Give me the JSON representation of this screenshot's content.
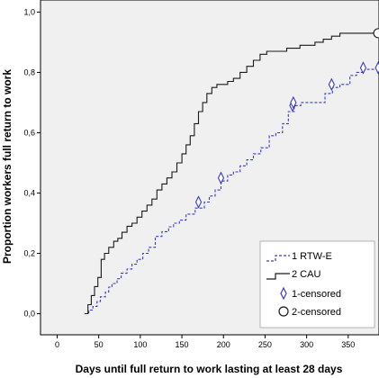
{
  "chart_data": {
    "type": "line",
    "xlabel": "Days until full return to work lasting at least 28 days",
    "ylabel": "Proportion workers full return to work",
    "xlim": [
      -20,
      387
    ],
    "ylim": [
      -0.07,
      1.04
    ],
    "xticks": [
      0,
      50,
      100,
      150,
      200,
      250,
      300,
      350
    ],
    "xtick_labels": [
      "0",
      "50",
      "100",
      "150",
      "200",
      "250",
      "300",
      "350"
    ],
    "yticks": [
      0.0,
      0.2,
      0.4,
      0.6,
      0.8,
      1.0
    ],
    "ytick_labels": [
      "0,0",
      "0,2",
      "0,4",
      "0,6",
      "0,8",
      "1,0"
    ],
    "grid": false,
    "legend_position": "bottom-right",
    "plot_background": "#f0f0f0",
    "series": [
      {
        "name": "1 RTW-E",
        "style": "dashed-step",
        "color": "#3a3ac8",
        "x": [
          33,
          38,
          43,
          48,
          52,
          58,
          62,
          66,
          72,
          77,
          84,
          90,
          96,
          103,
          110,
          118,
          126,
          134,
          140,
          147,
          155,
          166,
          177,
          183,
          190,
          197,
          205,
          212,
          220,
          228,
          236,
          245,
          255,
          263,
          271,
          278,
          285,
          293,
          301,
          312,
          322,
          331,
          340,
          352,
          360,
          368,
          375,
          387
        ],
        "y": [
          0.0,
          0.012,
          0.024,
          0.04,
          0.056,
          0.072,
          0.088,
          0.1,
          0.116,
          0.134,
          0.148,
          0.164,
          0.18,
          0.2,
          0.22,
          0.256,
          0.272,
          0.288,
          0.3,
          0.31,
          0.33,
          0.35,
          0.37,
          0.39,
          0.41,
          0.44,
          0.46,
          0.47,
          0.49,
          0.51,
          0.53,
          0.55,
          0.59,
          0.6,
          0.63,
          0.67,
          0.69,
          0.7,
          0.7,
          0.7,
          0.73,
          0.75,
          0.76,
          0.79,
          0.8,
          0.81,
          0.81,
          0.81
        ]
      },
      {
        "name": "2 CAU",
        "style": "solid-step",
        "color": "#1a1a1a",
        "x": [
          33,
          37,
          41,
          45,
          49,
          53,
          57,
          62,
          68,
          73,
          78,
          84,
          90,
          96,
          102,
          108,
          114,
          120,
          126,
          132,
          138,
          144,
          150,
          155,
          160,
          165,
          170,
          175,
          180,
          186,
          192,
          198,
          205,
          212,
          220,
          228,
          236,
          244,
          252,
          260,
          268,
          276,
          284,
          292,
          300,
          310,
          320,
          330,
          340,
          350,
          360,
          387
        ],
        "y": [
          0.0,
          0.03,
          0.06,
          0.09,
          0.12,
          0.18,
          0.2,
          0.22,
          0.24,
          0.25,
          0.27,
          0.29,
          0.3,
          0.32,
          0.34,
          0.36,
          0.38,
          0.41,
          0.43,
          0.45,
          0.47,
          0.5,
          0.53,
          0.56,
          0.59,
          0.63,
          0.67,
          0.7,
          0.73,
          0.75,
          0.76,
          0.76,
          0.77,
          0.78,
          0.8,
          0.82,
          0.84,
          0.86,
          0.87,
          0.87,
          0.87,
          0.88,
          0.88,
          0.89,
          0.89,
          0.9,
          0.91,
          0.92,
          0.93,
          0.93,
          0.93,
          0.93
        ]
      },
      {
        "name": "1-censored",
        "style": "diamond-markers",
        "color": "#3a3ac8",
        "x": [
          170,
          197,
          283,
          284,
          330,
          368,
          386
        ],
        "y": [
          0.37,
          0.45,
          0.69,
          0.7,
          0.76,
          0.815,
          0.815
        ]
      },
      {
        "name": "2-censored",
        "style": "circle-markers",
        "color": "#1a1a1a",
        "x": [
          386
        ],
        "y": [
          0.93
        ]
      }
    ]
  }
}
